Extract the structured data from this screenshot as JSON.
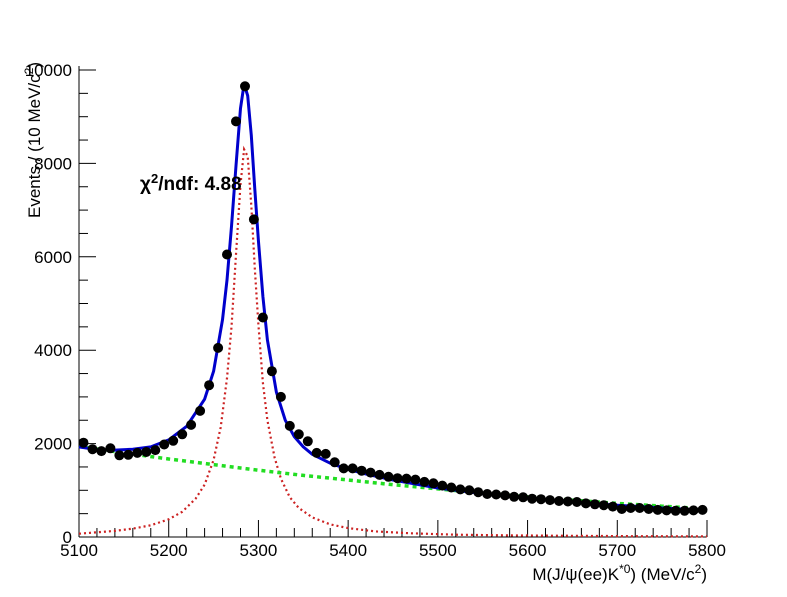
{
  "chart_data": {
    "type": "scatter",
    "xlabel": "M(J/ψ(ee)K*0) (MeV/c2)",
    "ylabel": "Events / (10 MeV/c2)",
    "annotation": "χ2/ndf: 4.88",
    "xlim": [
      5100,
      5800
    ],
    "ylim": [
      0,
      10000
    ],
    "x_ticks": [
      "5100",
      "5200",
      "5300",
      "5400",
      "5500",
      "5600",
      "5700",
      "5800"
    ],
    "y_ticks": [
      "0",
      "2000",
      "4000",
      "6000",
      "8000",
      "10000"
    ],
    "colors": {
      "data": "#000000",
      "total_fit": "#0000cc",
      "signal": "#cc2222",
      "background": "#22dd22"
    },
    "series": [
      {
        "style": "points",
        "x": [
          5105,
          5115,
          5125,
          5135,
          5145,
          5155,
          5165,
          5175,
          5185,
          5195,
          5205,
          5215,
          5225,
          5235,
          5245,
          5255,
          5265,
          5275,
          5285,
          5295,
          5305,
          5315,
          5325,
          5335,
          5345,
          5355,
          5365,
          5375,
          5385,
          5395,
          5405,
          5415,
          5425,
          5435,
          5445,
          5455,
          5465,
          5475,
          5485,
          5495,
          5505,
          5515,
          5525,
          5535,
          5545,
          5555,
          5565,
          5575,
          5585,
          5595,
          5605,
          5615,
          5625,
          5635,
          5645,
          5655,
          5665,
          5675,
          5685,
          5695,
          5705,
          5715,
          5725,
          5735,
          5745,
          5755,
          5765,
          5775,
          5785,
          5795
        ],
        "values": [
          2020,
          1880,
          1840,
          1900,
          1750,
          1760,
          1800,
          1820,
          1860,
          1980,
          2060,
          2200,
          2400,
          2700,
          3250,
          4050,
          6050,
          8900,
          9650,
          6800,
          4700,
          3550,
          3000,
          2380,
          2200,
          2050,
          1800,
          1780,
          1600,
          1470,
          1470,
          1420,
          1380,
          1330,
          1290,
          1260,
          1250,
          1230,
          1180,
          1150,
          1100,
          1060,
          1020,
          1000,
          960,
          920,
          910,
          890,
          860,
          850,
          820,
          810,
          790,
          770,
          760,
          750,
          720,
          700,
          680,
          650,
          600,
          620,
          620,
          600,
          580,
          570,
          560,
          560,
          570,
          580
        ]
      },
      {
        "style": "line",
        "x": [
          5100,
          5120,
          5140,
          5160,
          5180,
          5200,
          5220,
          5240,
          5250,
          5260,
          5265,
          5270,
          5275,
          5280,
          5284,
          5288,
          5292,
          5296,
          5300,
          5305,
          5310,
          5320,
          5330,
          5340,
          5350,
          5360,
          5380,
          5400,
          5420,
          5450,
          5500,
          5550,
          5600,
          5650,
          5700,
          5750,
          5800
        ],
        "values": [
          1930,
          1870,
          1860,
          1880,
          1930,
          2080,
          2370,
          2950,
          3550,
          4650,
          5500,
          6650,
          7950,
          9180,
          9700,
          9450,
          8600,
          7450,
          6350,
          5150,
          4220,
          3100,
          2500,
          2150,
          1930,
          1770,
          1580,
          1450,
          1350,
          1220,
          1050,
          930,
          830,
          750,
          680,
          620,
          570
        ]
      },
      {
        "style": "line",
        "x": [
          5100,
          5150,
          5200,
          5250,
          5300,
          5350,
          5400,
          5450,
          5500,
          5550,
          5600,
          5650,
          5700,
          5750,
          5800
        ],
        "values": [
          1940,
          1800,
          1670,
          1550,
          1430,
          1320,
          1220,
          1120,
          1030,
          940,
          860,
          790,
          720,
          660,
          600
        ]
      },
      {
        "style": "line",
        "x": [
          5100,
          5120,
          5140,
          5160,
          5180,
          5200,
          5215,
          5230,
          5240,
          5250,
          5258,
          5265,
          5270,
          5275,
          5280,
          5284,
          5288,
          5292,
          5296,
          5300,
          5305,
          5310,
          5318,
          5325,
          5335,
          5345,
          5360,
          5380,
          5400,
          5430,
          5470,
          5520,
          5580,
          5650,
          5720,
          5800
        ],
        "values": [
          70,
          100,
          130,
          180,
          250,
          380,
          540,
          820,
          1120,
          1650,
          2350,
          3400,
          4500,
          6050,
          7550,
          8300,
          8150,
          7100,
          5750,
          4550,
          3300,
          2500,
          1700,
          1250,
          850,
          620,
          420,
          270,
          190,
          120,
          80,
          50,
          35,
          25,
          18,
          12
        ]
      }
    ]
  }
}
